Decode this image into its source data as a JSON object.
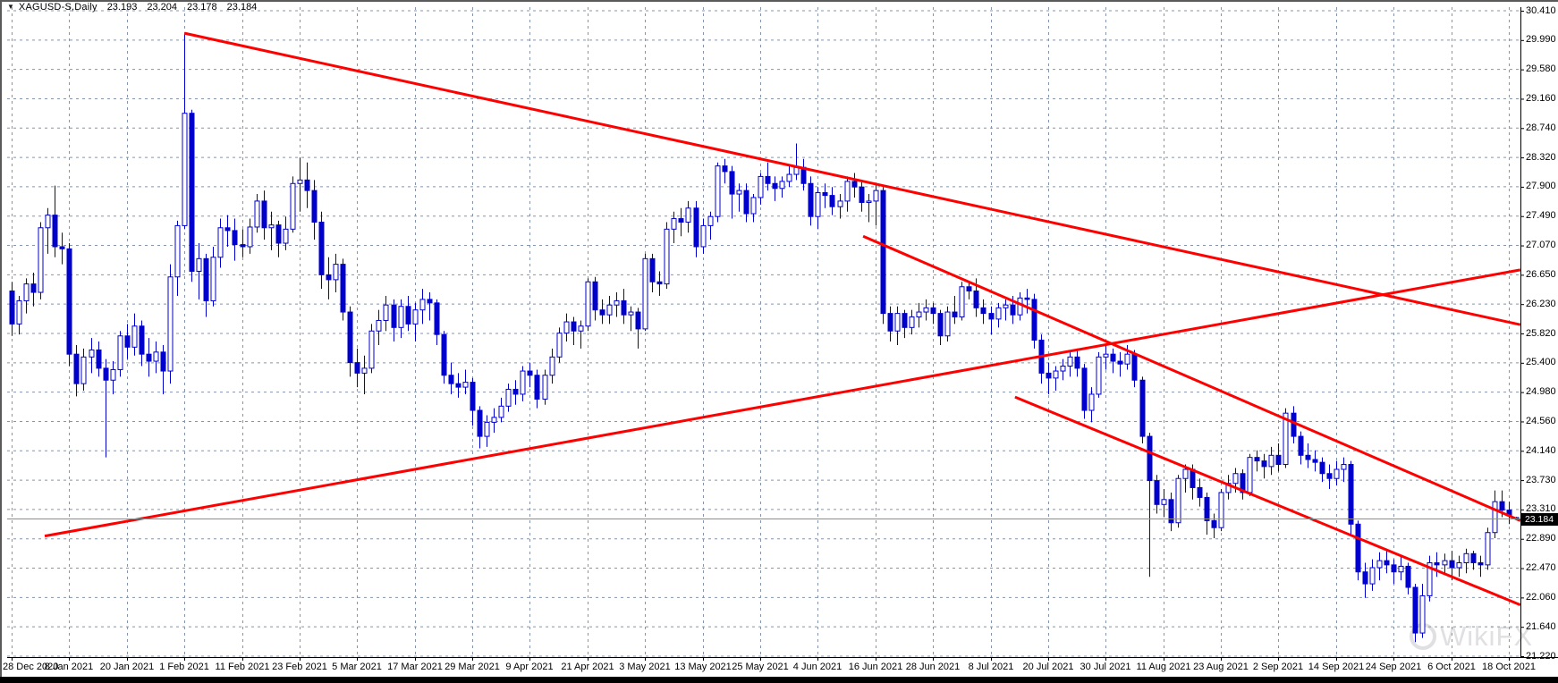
{
  "title": {
    "symbol": "XAGUSD-S,Daily",
    "open": "23.193",
    "high": "23.204",
    "low": "23.178",
    "close": "23.184"
  },
  "icons": {
    "symbol_dropdown": "▼"
  },
  "watermark": {
    "logo": "circle-logo",
    "text": "WikiFX"
  },
  "current_price": {
    "value": "23.184"
  },
  "colors": {
    "candle_blue": "#0000CC",
    "candle_fill_up": "#FFFFFF",
    "trendline_red": "#FF0000",
    "grid": "#8595AB",
    "axis": "#000000",
    "current_price_line": "#8C8C8C",
    "price_tag_bg": "#000000",
    "price_tag_text": "#FFFFFF"
  },
  "chart_data": {
    "type": "candlestick",
    "title": "XAGUSD-S Daily",
    "legend_position": "none",
    "grid": true,
    "ylabel": "",
    "xlabel": "",
    "price_axis": {
      "top_price": 30.41,
      "bottom_price": 21.22,
      "tick_labels": [
        "30.410",
        "29.990",
        "29.580",
        "29.160",
        "28.740",
        "28.320",
        "27.900",
        "27.490",
        "27.070",
        "26.650",
        "26.230",
        "25.820",
        "25.400",
        "24.980",
        "24.560",
        "24.140",
        "23.730",
        "23.310",
        "22.890",
        "22.470",
        "22.060",
        "21.640",
        "21.220"
      ]
    },
    "time_axis": {
      "tick_labels": [
        "28 Dec 2020",
        "8 Jan 2021",
        "20 Jan 2021",
        "1 Feb 2021",
        "11 Feb 2021",
        "23 Feb 2021",
        "5 Mar 2021",
        "17 Mar 2021",
        "29 Mar 2021",
        "9 Apr 2021",
        "21 Apr 2021",
        "3 May 2021",
        "13 May 2021",
        "25 May 2021",
        "4 Jun 2021",
        "16 Jun 2021",
        "28 Jun 2021",
        "8 Jul 2021",
        "20 Jul 2021",
        "30 Jul 2021",
        "11 Aug 2021",
        "23 Aug 2021",
        "2 Sep 2021",
        "14 Sep 2021",
        "24 Sep 2021",
        "6 Oct 2021",
        "18 Oct 2021"
      ],
      "bars_per_tick": 8
    },
    "current_price": 23.184,
    "bars_ohlc": [
      [
        26.42,
        26.55,
        25.78,
        25.95
      ],
      [
        25.95,
        26.35,
        25.8,
        26.28
      ],
      [
        26.28,
        26.6,
        26.1,
        26.52
      ],
      [
        26.52,
        26.68,
        26.2,
        26.4
      ],
      [
        26.4,
        27.4,
        26.3,
        27.32
      ],
      [
        27.32,
        27.6,
        26.95,
        27.5
      ],
      [
        27.5,
        27.92,
        26.9,
        27.05
      ],
      [
        27.05,
        27.25,
        26.8,
        27.02
      ],
      [
        27.02,
        27.1,
        25.35,
        25.52
      ],
      [
        25.52,
        25.65,
        24.92,
        25.1
      ],
      [
        25.1,
        25.6,
        25.0,
        25.48
      ],
      [
        25.48,
        25.75,
        25.25,
        25.58
      ],
      [
        25.58,
        25.7,
        25.2,
        25.32
      ],
      [
        25.32,
        25.45,
        24.05,
        25.15
      ],
      [
        25.15,
        25.42,
        24.95,
        25.3
      ],
      [
        25.3,
        25.85,
        25.2,
        25.78
      ],
      [
        25.78,
        25.95,
        25.45,
        25.62
      ],
      [
        25.62,
        26.1,
        25.5,
        25.92
      ],
      [
        25.92,
        26.0,
        25.35,
        25.52
      ],
      [
        25.52,
        25.75,
        25.2,
        25.42
      ],
      [
        25.42,
        25.7,
        25.25,
        25.55
      ],
      [
        25.55,
        25.65,
        24.95,
        25.28
      ],
      [
        25.28,
        26.8,
        25.1,
        26.62
      ],
      [
        26.62,
        27.42,
        26.35,
        27.35
      ],
      [
        27.35,
        30.08,
        27.3,
        28.95
      ],
      [
        28.95,
        29.0,
        26.55,
        26.7
      ],
      [
        26.7,
        27.1,
        26.3,
        26.88
      ],
      [
        26.88,
        26.95,
        26.05,
        26.28
      ],
      [
        26.28,
        27.05,
        26.2,
        26.9
      ],
      [
        26.9,
        27.45,
        26.75,
        27.32
      ],
      [
        27.32,
        27.5,
        27.05,
        27.28
      ],
      [
        27.28,
        27.45,
        26.85,
        27.08
      ],
      [
        27.08,
        27.3,
        26.9,
        27.05
      ],
      [
        27.05,
        27.45,
        26.95,
        27.33
      ],
      [
        27.33,
        27.8,
        27.25,
        27.7
      ],
      [
        27.7,
        27.85,
        27.15,
        27.32
      ],
      [
        27.32,
        27.55,
        27.0,
        27.36
      ],
      [
        27.36,
        27.42,
        26.9,
        27.1
      ],
      [
        27.1,
        27.48,
        27.0,
        27.3
      ],
      [
        27.3,
        28.05,
        27.25,
        27.95
      ],
      [
        27.95,
        28.32,
        27.55,
        28.0
      ],
      [
        28.0,
        28.25,
        27.6,
        27.85
      ],
      [
        27.85,
        28.0,
        27.15,
        27.4
      ],
      [
        27.4,
        27.55,
        26.45,
        26.65
      ],
      [
        26.65,
        26.9,
        26.3,
        26.58
      ],
      [
        26.58,
        26.95,
        26.4,
        26.8
      ],
      [
        26.8,
        26.88,
        26.0,
        26.12
      ],
      [
        26.12,
        26.2,
        25.2,
        25.4
      ],
      [
        25.4,
        25.6,
        25.05,
        25.25
      ],
      [
        25.25,
        25.5,
        24.95,
        25.32
      ],
      [
        25.32,
        25.95,
        25.25,
        25.85
      ],
      [
        25.85,
        26.15,
        25.65,
        26.0
      ],
      [
        26.0,
        26.35,
        25.85,
        26.22
      ],
      [
        26.22,
        26.3,
        25.7,
        25.9
      ],
      [
        25.9,
        26.3,
        25.75,
        26.2
      ],
      [
        26.2,
        26.35,
        25.85,
        25.95
      ],
      [
        25.95,
        26.25,
        25.7,
        26.15
      ],
      [
        26.15,
        26.45,
        25.95,
        26.3
      ],
      [
        26.3,
        26.4,
        26.0,
        26.25
      ],
      [
        26.25,
        26.3,
        25.65,
        25.8
      ],
      [
        25.8,
        25.85,
        25.1,
        25.22
      ],
      [
        25.22,
        25.4,
        24.95,
        25.1
      ],
      [
        25.1,
        25.25,
        24.9,
        25.05
      ],
      [
        25.05,
        25.3,
        24.95,
        25.12
      ],
      [
        25.12,
        25.18,
        24.5,
        24.72
      ],
      [
        24.72,
        24.78,
        24.18,
        24.35
      ],
      [
        24.35,
        24.65,
        24.2,
        24.55
      ],
      [
        24.55,
        24.75,
        24.4,
        24.62
      ],
      [
        24.62,
        24.9,
        24.55,
        24.78
      ],
      [
        24.78,
        25.1,
        24.7,
        25.02
      ],
      [
        25.02,
        25.15,
        24.8,
        24.95
      ],
      [
        24.95,
        25.35,
        24.85,
        25.28
      ],
      [
        25.28,
        25.4,
        25.05,
        25.22
      ],
      [
        25.22,
        25.3,
        24.75,
        24.88
      ],
      [
        24.88,
        25.3,
        24.8,
        25.22
      ],
      [
        25.22,
        25.6,
        25.1,
        25.48
      ],
      [
        25.48,
        25.9,
        25.4,
        25.82
      ],
      [
        25.82,
        26.1,
        25.7,
        25.98
      ],
      [
        25.98,
        26.05,
        25.65,
        25.85
      ],
      [
        25.85,
        26.0,
        25.6,
        25.92
      ],
      [
        25.92,
        26.6,
        25.85,
        26.55
      ],
      [
        26.55,
        26.62,
        26.0,
        26.15
      ],
      [
        26.15,
        26.3,
        25.95,
        26.08
      ],
      [
        26.08,
        26.35,
        25.95,
        26.22
      ],
      [
        26.22,
        26.4,
        26.05,
        26.28
      ],
      [
        26.28,
        26.45,
        25.95,
        26.08
      ],
      [
        26.08,
        26.2,
        25.85,
        26.12
      ],
      [
        26.12,
        26.18,
        25.6,
        25.88
      ],
      [
        25.88,
        26.95,
        25.85,
        26.88
      ],
      [
        26.88,
        26.95,
        26.4,
        26.55
      ],
      [
        26.55,
        26.7,
        26.35,
        26.52
      ],
      [
        26.52,
        27.4,
        26.45,
        27.3
      ],
      [
        27.3,
        27.55,
        27.1,
        27.45
      ],
      [
        27.45,
        27.6,
        27.2,
        27.4
      ],
      [
        27.4,
        27.7,
        27.25,
        27.6
      ],
      [
        27.6,
        27.7,
        26.9,
        27.05
      ],
      [
        27.05,
        27.45,
        26.95,
        27.35
      ],
      [
        27.35,
        27.55,
        27.15,
        27.48
      ],
      [
        27.48,
        28.25,
        27.4,
        28.2
      ],
      [
        28.2,
        28.3,
        27.95,
        28.12
      ],
      [
        28.12,
        28.2,
        27.45,
        27.8
      ],
      [
        27.8,
        27.95,
        27.55,
        27.85
      ],
      [
        27.85,
        27.95,
        27.4,
        27.52
      ],
      [
        27.52,
        27.8,
        27.4,
        27.75
      ],
      [
        27.75,
        28.1,
        27.65,
        28.05
      ],
      [
        28.05,
        28.25,
        27.85,
        27.95
      ],
      [
        27.95,
        28.05,
        27.7,
        27.88
      ],
      [
        27.88,
        28.05,
        27.75,
        27.98
      ],
      [
        27.98,
        28.2,
        27.9,
        28.08
      ],
      [
        28.08,
        28.52,
        28.0,
        28.18
      ],
      [
        28.18,
        28.3,
        27.85,
        27.95
      ],
      [
        27.95,
        28.05,
        27.35,
        27.48
      ],
      [
        27.48,
        27.9,
        27.3,
        27.82
      ],
      [
        27.82,
        27.95,
        27.6,
        27.78
      ],
      [
        27.78,
        27.9,
        27.5,
        27.62
      ],
      [
        27.62,
        27.8,
        27.45,
        27.7
      ],
      [
        27.7,
        28.05,
        27.55,
        27.98
      ],
      [
        27.98,
        28.1,
        27.75,
        27.9
      ],
      [
        27.9,
        28.0,
        27.55,
        27.68
      ],
      [
        27.68,
        27.8,
        27.4,
        27.7
      ],
      [
        27.7,
        27.95,
        27.35,
        27.85
      ],
      [
        27.85,
        27.9,
        25.95,
        26.1
      ],
      [
        26.1,
        26.2,
        25.7,
        25.85
      ],
      [
        25.85,
        26.2,
        25.65,
        26.1
      ],
      [
        26.1,
        26.15,
        25.75,
        25.9
      ],
      [
        25.9,
        26.15,
        25.8,
        26.05
      ],
      [
        26.05,
        26.25,
        25.9,
        26.12
      ],
      [
        26.12,
        26.3,
        26.0,
        26.18
      ],
      [
        26.18,
        26.25,
        25.95,
        26.1
      ],
      [
        26.1,
        26.15,
        25.65,
        25.78
      ],
      [
        25.78,
        26.2,
        25.7,
        26.12
      ],
      [
        26.12,
        26.35,
        25.95,
        26.05
      ],
      [
        26.05,
        26.55,
        26.0,
        26.48
      ],
      [
        26.48,
        26.55,
        26.3,
        26.42
      ],
      [
        26.42,
        26.6,
        26.05,
        26.18
      ],
      [
        26.18,
        26.3,
        25.95,
        26.1
      ],
      [
        26.1,
        26.2,
        25.8,
        26.02
      ],
      [
        26.02,
        26.25,
        25.9,
        26.18
      ],
      [
        26.18,
        26.3,
        26.0,
        26.22
      ],
      [
        26.22,
        26.35,
        25.95,
        26.08
      ],
      [
        26.08,
        26.4,
        26.0,
        26.32
      ],
      [
        26.32,
        26.45,
        26.1,
        26.3
      ],
      [
        26.3,
        26.38,
        25.6,
        25.72
      ],
      [
        25.72,
        25.8,
        25.1,
        25.25
      ],
      [
        25.25,
        25.4,
        24.95,
        25.18
      ],
      [
        25.18,
        25.35,
        25.0,
        25.28
      ],
      [
        25.28,
        25.45,
        25.15,
        25.35
      ],
      [
        25.35,
        25.55,
        25.2,
        25.48
      ],
      [
        25.48,
        25.6,
        25.2,
        25.32
      ],
      [
        25.32,
        25.38,
        24.6,
        24.72
      ],
      [
        24.72,
        25.05,
        24.55,
        24.95
      ],
      [
        24.95,
        25.55,
        24.9,
        25.48
      ],
      [
        25.48,
        25.65,
        25.3,
        25.52
      ],
      [
        25.52,
        25.6,
        25.25,
        25.42
      ],
      [
        25.42,
        25.55,
        25.2,
        25.38
      ],
      [
        25.38,
        25.65,
        25.3,
        25.52
      ],
      [
        25.52,
        25.58,
        25.05,
        25.15
      ],
      [
        25.15,
        25.2,
        24.25,
        24.35
      ],
      [
        24.35,
        24.4,
        22.35,
        23.72
      ],
      [
        23.72,
        23.8,
        23.25,
        23.38
      ],
      [
        23.38,
        23.6,
        23.2,
        23.45
      ],
      [
        23.45,
        23.55,
        23.0,
        23.12
      ],
      [
        23.12,
        23.8,
        23.05,
        23.75
      ],
      [
        23.75,
        23.95,
        23.55,
        23.88
      ],
      [
        23.88,
        23.95,
        23.45,
        23.62
      ],
      [
        23.62,
        23.75,
        23.35,
        23.48
      ],
      [
        23.48,
        23.55,
        22.95,
        23.15
      ],
      [
        23.15,
        23.25,
        22.9,
        23.05
      ],
      [
        23.05,
        23.6,
        23.0,
        23.55
      ],
      [
        23.55,
        23.8,
        23.45,
        23.68
      ],
      [
        23.68,
        23.9,
        23.55,
        23.82
      ],
      [
        23.82,
        23.88,
        23.45,
        23.55
      ],
      [
        23.55,
        24.1,
        23.5,
        24.05
      ],
      [
        24.05,
        24.15,
        23.85,
        24.0
      ],
      [
        24.0,
        24.1,
        23.75,
        23.92
      ],
      [
        23.92,
        24.2,
        23.8,
        24.08
      ],
      [
        24.08,
        24.25,
        23.85,
        23.95
      ],
      [
        23.95,
        24.75,
        23.9,
        24.68
      ],
      [
        24.68,
        24.78,
        24.25,
        24.35
      ],
      [
        24.35,
        24.42,
        23.95,
        24.08
      ],
      [
        24.08,
        24.25,
        23.9,
        24.02
      ],
      [
        24.02,
        24.15,
        23.85,
        23.98
      ],
      [
        23.98,
        24.05,
        23.7,
        23.82
      ],
      [
        23.82,
        23.95,
        23.6,
        23.75
      ],
      [
        23.75,
        24.0,
        23.65,
        23.88
      ],
      [
        23.88,
        24.05,
        23.7,
        23.95
      ],
      [
        23.95,
        24.0,
        22.95,
        23.1
      ],
      [
        23.1,
        23.15,
        22.3,
        22.42
      ],
      [
        22.42,
        22.55,
        22.05,
        22.25
      ],
      [
        22.25,
        22.6,
        22.15,
        22.48
      ],
      [
        22.48,
        22.7,
        22.3,
        22.58
      ],
      [
        22.58,
        22.75,
        22.4,
        22.52
      ],
      [
        22.52,
        22.6,
        22.25,
        22.42
      ],
      [
        22.42,
        22.65,
        22.3,
        22.5
      ],
      [
        22.5,
        22.55,
        22.1,
        22.2
      ],
      [
        22.2,
        22.25,
        21.42,
        21.55
      ],
      [
        21.55,
        22.25,
        21.48,
        22.08
      ],
      [
        22.08,
        22.65,
        22.0,
        22.55
      ],
      [
        22.55,
        22.7,
        22.35,
        22.52
      ],
      [
        22.52,
        22.68,
        22.4,
        22.58
      ],
      [
        22.58,
        22.72,
        22.3,
        22.48
      ],
      [
        22.48,
        22.65,
        22.35,
        22.55
      ],
      [
        22.55,
        22.75,
        22.4,
        22.68
      ],
      [
        22.68,
        22.72,
        22.45,
        22.55
      ],
      [
        22.55,
        22.65,
        22.35,
        22.52
      ],
      [
        22.52,
        23.05,
        22.45,
        22.98
      ],
      [
        22.98,
        23.58,
        22.9,
        23.42
      ],
      [
        23.42,
        23.58,
        23.2,
        23.3
      ],
      [
        23.3,
        23.42,
        23.1,
        23.22
      ],
      [
        23.193,
        23.204,
        23.178,
        23.184
      ]
    ],
    "trendlines": [
      {
        "name": "descending-resistance-from-feb-spike",
        "x1_bar": 24.0,
        "p1": 30.09,
        "x2_bar": 209.6,
        "p2": 25.94
      },
      {
        "name": "ascending-support-long",
        "x1_bar": 4.6,
        "p1": 22.93,
        "x2_bar": 209.6,
        "p2": 26.72
      },
      {
        "name": "descending-channel-upper",
        "x1_bar": 118.3,
        "p1": 27.2,
        "x2_bar": 209.6,
        "p2": 23.15
      },
      {
        "name": "descending-channel-lower",
        "x1_bar": 139.4,
        "p1": 24.91,
        "x2_bar": 209.6,
        "p2": 21.95
      }
    ]
  }
}
